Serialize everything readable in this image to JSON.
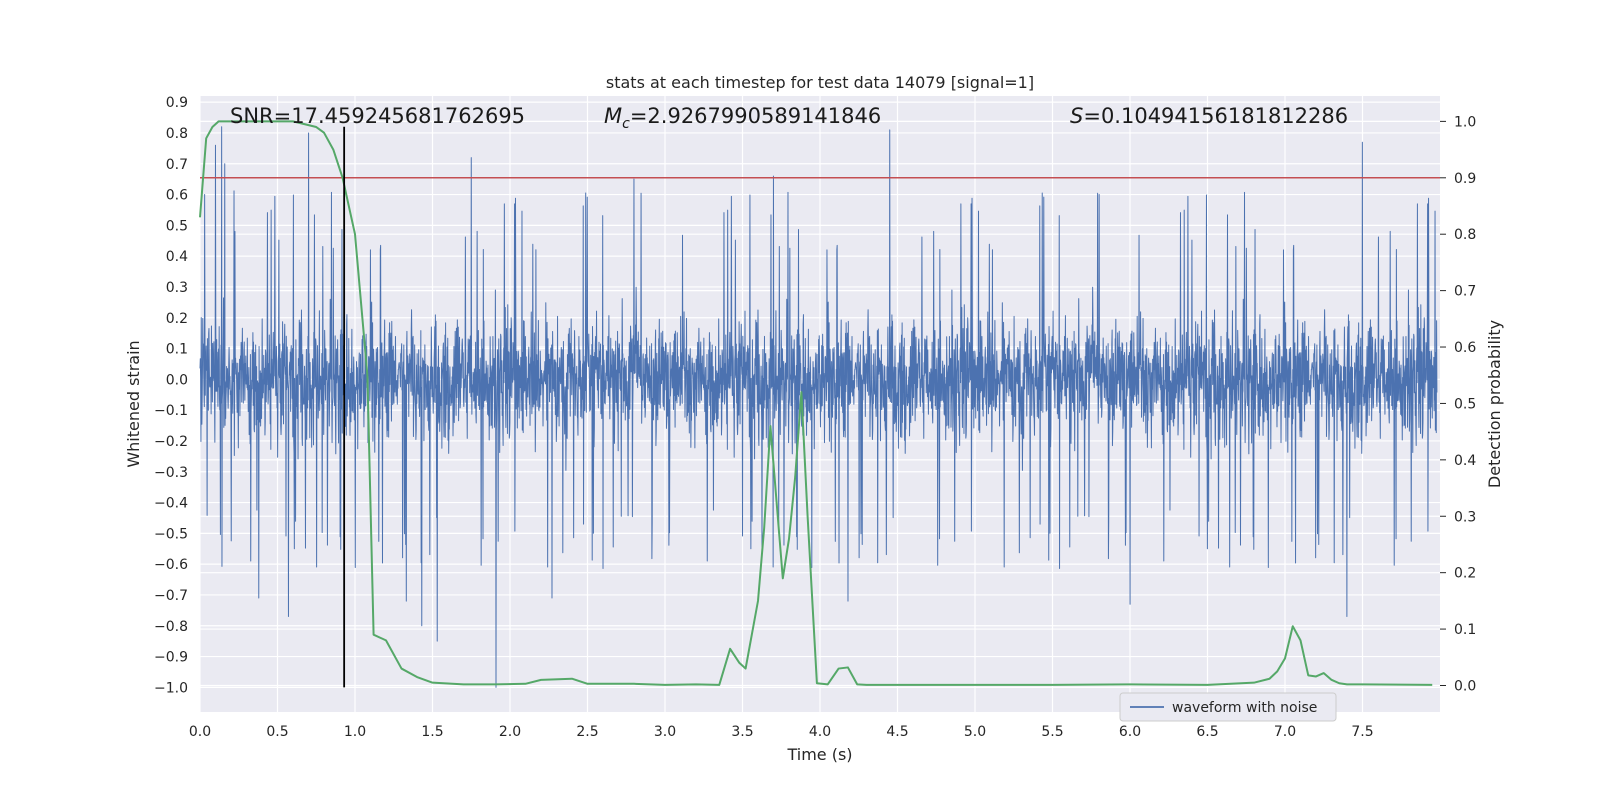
{
  "chart_data": {
    "type": "line",
    "title": "stats at each timestep for test data 14079 [signal=1]",
    "xlabel": "Time (s)",
    "ylabel_left": "Whitened strain",
    "ylabel_right": "Detection probability",
    "xlim": [
      0.0,
      8.0
    ],
    "ylim_left": [
      -1.08,
      0.92
    ],
    "ylim_right": [
      -0.047,
      1.045
    ],
    "x_ticks": [
      0.0,
      0.5,
      1.0,
      1.5,
      2.0,
      2.5,
      3.0,
      3.5,
      4.0,
      4.5,
      5.0,
      5.5,
      6.0,
      6.5,
      7.0,
      7.5
    ],
    "x_tick_labels": [
      "0.0",
      "0.5",
      "1.0",
      "1.5",
      "2.0",
      "2.5",
      "3.0",
      "3.5",
      "4.0",
      "4.5",
      "5.0",
      "5.5",
      "6.0",
      "6.5",
      "7.0",
      "7.5"
    ],
    "y_left_ticks": [
      0.9,
      0.8,
      0.7,
      0.6,
      0.5,
      0.4,
      0.3,
      0.2,
      0.1,
      0.0,
      -0.1,
      -0.2,
      -0.3,
      -0.4,
      -0.5,
      -0.6,
      -0.7,
      -0.8,
      -0.9,
      -1.0
    ],
    "y_left_tick_labels": [
      "0.9",
      "0.8",
      "0.7",
      "0.6",
      "0.5",
      "0.4",
      "0.3",
      "0.2",
      "0.1",
      "0.0",
      "−0.1",
      "−0.2",
      "−0.3",
      "−0.4",
      "−0.5",
      "−0.6",
      "−0.7",
      "−0.8",
      "−0.9",
      "−1.0"
    ],
    "y_right_ticks": [
      1.0,
      0.9,
      0.8,
      0.7,
      0.6,
      0.5,
      0.4,
      0.3,
      0.2,
      0.1,
      0.0
    ],
    "y_right_tick_labels": [
      "1.0",
      "0.9",
      "0.8",
      "0.7",
      "0.6",
      "0.5",
      "0.4",
      "0.3",
      "0.2",
      "0.1",
      "0.0"
    ],
    "threshold_probability": 0.9,
    "marker_time": 0.93,
    "marker_ymin": -1.0,
    "marker_ymax": 0.82,
    "waveform": {
      "name": "waveform with noise",
      "color": "#4c72b0",
      "samples": 4000,
      "typical_amplitude": 0.28,
      "upper_peaks": [
        [
          0.03,
          0.6
        ],
        [
          0.1,
          0.76
        ],
        [
          0.14,
          0.82
        ],
        [
          0.16,
          0.7
        ],
        [
          0.7,
          0.8
        ],
        [
          0.93,
          0.73
        ],
        [
          1.75,
          0.72
        ],
        [
          2.8,
          0.65
        ],
        [
          3.7,
          0.66
        ],
        [
          4.45,
          0.81
        ],
        [
          5.8,
          0.6
        ],
        [
          7.5,
          0.77
        ]
      ],
      "lower_peaks": [
        [
          0.38,
          -0.71
        ],
        [
          0.57,
          -0.77
        ],
        [
          1.33,
          -0.72
        ],
        [
          1.43,
          -0.8
        ],
        [
          1.53,
          -0.85
        ],
        [
          1.91,
          -1.0
        ],
        [
          2.27,
          -0.71
        ],
        [
          4.18,
          -0.72
        ],
        [
          6.0,
          -0.73
        ],
        [
          7.4,
          -0.77
        ]
      ]
    },
    "probability": {
      "name": "Detection probability",
      "color": "#55a868",
      "x": [
        0.0,
        0.04,
        0.08,
        0.12,
        0.2,
        0.4,
        0.6,
        0.75,
        0.8,
        0.86,
        0.92,
        1.0,
        1.08,
        1.12,
        1.2,
        1.3,
        1.4,
        1.5,
        1.7,
        1.9,
        2.1,
        2.2,
        2.4,
        2.5,
        2.8,
        3.0,
        3.2,
        3.35,
        3.42,
        3.48,
        3.52,
        3.6,
        3.64,
        3.68,
        3.76,
        3.8,
        3.84,
        3.88,
        3.92,
        3.98,
        4.05,
        4.12,
        4.18,
        4.24,
        4.3,
        4.5,
        5.0,
        5.5,
        6.0,
        6.5,
        6.8,
        6.9,
        6.95,
        7.0,
        7.05,
        7.1,
        7.15,
        7.2,
        7.25,
        7.3,
        7.35,
        7.4,
        7.5,
        7.95
      ],
      "y": [
        0.83,
        0.97,
        0.99,
        1.0,
        1.0,
        1.0,
        1.0,
        0.99,
        0.98,
        0.95,
        0.9,
        0.8,
        0.55,
        0.09,
        0.08,
        0.03,
        0.015,
        0.005,
        0.002,
        0.002,
        0.003,
        0.01,
        0.012,
        0.003,
        0.003,
        0.001,
        0.002,
        0.001,
        0.065,
        0.04,
        0.03,
        0.15,
        0.28,
        0.46,
        0.19,
        0.26,
        0.37,
        0.52,
        0.3,
        0.004,
        0.002,
        0.03,
        0.032,
        0.002,
        0.001,
        0.001,
        0.001,
        0.001,
        0.002,
        0.001,
        0.005,
        0.012,
        0.025,
        0.048,
        0.105,
        0.08,
        0.018,
        0.016,
        0.022,
        0.01,
        0.004,
        0.002,
        0.002,
        0.001
      ]
    },
    "threshold_color": "#c44e52",
    "marker_color": "#000000",
    "stats": {
      "snr": "SNR=17.459245681762695",
      "mc_symbol": "M",
      "mc_subscript": "c",
      "mc_value": "=2.9267990589141846",
      "s_symbol": "S",
      "s_value": "=0.10494156181812286"
    },
    "legend": {
      "label": "waveform with noise",
      "position": "bottom-right"
    }
  }
}
